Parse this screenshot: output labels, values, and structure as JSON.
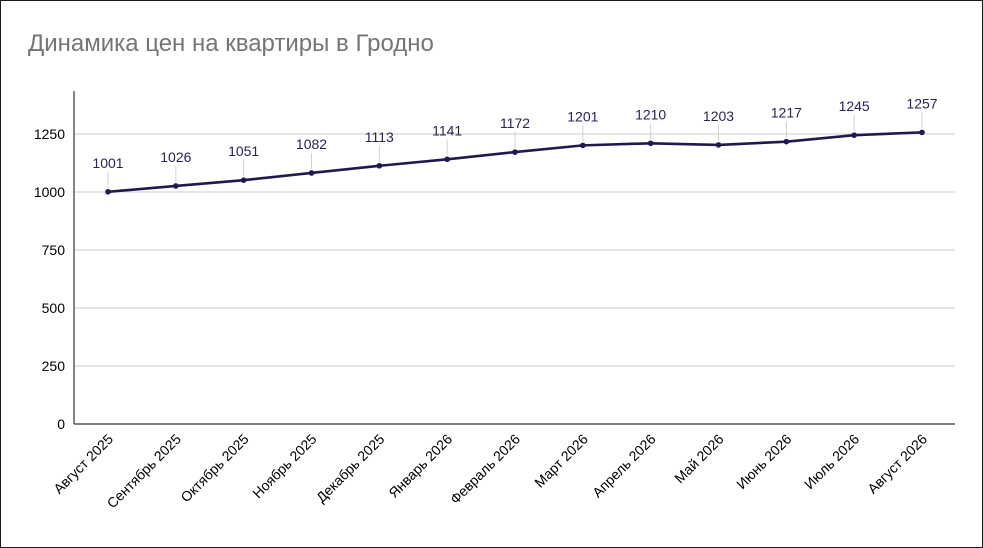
{
  "chart_data": {
    "type": "line",
    "title": "Динамика цен на квартиры в Гродно",
    "xlabel": "",
    "ylabel": "",
    "categories": [
      "Август 2025",
      "Сентябрь 2025",
      "Октябрь 2025",
      "Ноябрь 2025",
      "Декабрь 2025",
      "Январь 2026",
      "Февраль 2026",
      "Март 2026",
      "Апрель 2026",
      "Май 2026",
      "Июнь 2026",
      "Июль 2026",
      "Август 2026"
    ],
    "series": [
      {
        "values": [
          1001,
          1026,
          1051,
          1082,
          1113,
          1141,
          1172,
          1201,
          1210,
          1203,
          1217,
          1245,
          1257
        ],
        "color": "#1f1a4d"
      }
    ],
    "ylim": [
      0,
      1250
    ],
    "yticks": [
      0,
      250,
      500,
      750,
      1000,
      1250
    ],
    "grid": true,
    "legend": "none",
    "data_labels": true
  }
}
